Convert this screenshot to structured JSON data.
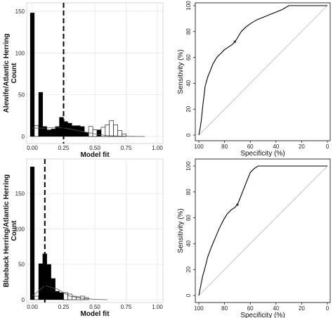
{
  "chart_data": [
    {
      "type": "bar",
      "panel": "top-left",
      "ylabel_lines": [
        "Alewife/Atlantic Herring",
        "Count"
      ],
      "xlabel": "Model fit",
      "xlim": [
        0,
        1
      ],
      "ylim": [
        0,
        155
      ],
      "x_ticks": [
        "0.00",
        "0.25",
        "0.50",
        "0.75",
        "1.00"
      ],
      "y_ticks": [
        "0",
        "50",
        "100",
        "150"
      ],
      "x_tick_values": [
        0,
        0.25,
        0.5,
        0.75,
        1
      ],
      "y_tick_values": [
        0,
        50,
        100,
        150
      ],
      "bin_width": 0.0333,
      "threshold": 0.25,
      "grid": true,
      "series": [
        {
          "color": "#000000",
          "values": [
            [
              0.0,
              148
            ],
            [
              0.067,
              53
            ],
            [
              0.1,
              12
            ],
            [
              0.133,
              8
            ],
            [
              0.167,
              9
            ],
            [
              0.2,
              12
            ],
            [
              0.233,
              23
            ],
            [
              0.267,
              18
            ],
            [
              0.3,
              16
            ],
            [
              0.333,
              13
            ],
            [
              0.367,
              13
            ],
            [
              0.4,
              12
            ],
            [
              0.433,
              5
            ],
            [
              0.467,
              5
            ],
            [
              0.5,
              3
            ],
            [
              0.533,
              8
            ],
            [
              0.567,
              8
            ],
            [
              0.6,
              3
            ],
            [
              0.633,
              1
            ]
          ]
        },
        {
          "color": "#ffffff",
          "values": [
            [
              0.033,
              13
            ],
            [
              0.467,
              12
            ],
            [
              0.5,
              8
            ],
            [
              0.567,
              11
            ],
            [
              0.6,
              14
            ],
            [
              0.633,
              19
            ],
            [
              0.667,
              14
            ],
            [
              0.7,
              7
            ],
            [
              0.733,
              3
            ]
          ]
        }
      ],
      "density_line": [
        [
          0.0,
          10
        ],
        [
          0.1,
          10
        ],
        [
          0.2,
          11
        ],
        [
          0.3,
          9
        ],
        [
          0.4,
          6
        ],
        [
          0.5,
          3
        ],
        [
          0.6,
          1
        ],
        [
          0.7,
          0.5
        ],
        [
          0.8,
          0.2
        ],
        [
          0.9,
          0
        ]
      ]
    },
    {
      "type": "line",
      "panel": "top-right",
      "xlabel": "Specificity (%)",
      "ylabel": "Sensitivity (%)",
      "x_reversed": true,
      "xlim": [
        100,
        0
      ],
      "ylim": [
        0,
        100
      ],
      "x_ticks": [
        "100",
        "80",
        "60",
        "40",
        "20",
        "0"
      ],
      "y_ticks": [
        "0",
        "20",
        "40",
        "60",
        "80",
        "100"
      ],
      "x_tick_values": [
        100,
        80,
        60,
        40,
        20,
        0
      ],
      "y_tick_values": [
        0,
        20,
        40,
        60,
        80,
        100
      ],
      "marker": {
        "symbol": "*",
        "x": 72,
        "y": 72
      },
      "series": [
        {
          "values": [
            [
              100,
              0
            ],
            [
              99,
              5
            ],
            [
              98,
              12
            ],
            [
              97,
              22
            ],
            [
              96,
              30
            ],
            [
              95,
              38
            ],
            [
              93,
              45
            ],
            [
              91,
              50
            ],
            [
              89,
              55
            ],
            [
              86,
              60
            ],
            [
              83,
              63
            ],
            [
              80,
              66
            ],
            [
              77,
              68
            ],
            [
              74,
              70
            ],
            [
              72,
              72
            ],
            [
              70,
              75
            ],
            [
              67,
              80
            ],
            [
              64,
              83
            ],
            [
              60,
              86
            ],
            [
              55,
              89
            ],
            [
              50,
              91
            ],
            [
              45,
              93
            ],
            [
              40,
              95
            ],
            [
              35,
              97
            ],
            [
              30,
              100
            ],
            [
              0,
              100
            ]
          ]
        }
      ]
    },
    {
      "type": "bar",
      "panel": "bottom-left",
      "ylabel_lines": [
        "Blueback Herring/Atlantic Herring",
        "Count"
      ],
      "xlabel": "Model fit",
      "xlim": [
        0,
        1
      ],
      "ylim": [
        0,
        195
      ],
      "x_ticks": [
        "0.00",
        "0.25",
        "0.50",
        "0.75",
        "1.00"
      ],
      "y_ticks": [
        "0",
        "50",
        "100",
        "150"
      ],
      "x_tick_values": [
        0,
        0.25,
        0.5,
        0.75,
        1
      ],
      "y_tick_values": [
        0,
        50,
        100,
        150
      ],
      "bin_width": 0.0333,
      "threshold": 0.1,
      "grid": true,
      "series": [
        {
          "color": "#000000",
          "values": [
            [
              0.0,
              188
            ],
            [
              0.067,
              51
            ],
            [
              0.1,
              65
            ],
            [
              0.133,
              50
            ],
            [
              0.167,
              30
            ],
            [
              0.2,
              12
            ],
            [
              0.233,
              10
            ],
            [
              0.267,
              5
            ],
            [
              0.3,
              3
            ],
            [
              0.333,
              2
            ],
            [
              0.4,
              3
            ]
          ]
        },
        {
          "color": "#ffffff",
          "values": [
            [
              0.033,
              5
            ],
            [
              0.267,
              10
            ],
            [
              0.3,
              8
            ],
            [
              0.333,
              5
            ],
            [
              0.367,
              4
            ],
            [
              0.4,
              5
            ],
            [
              0.433,
              3
            ]
          ]
        }
      ],
      "density_line": [
        [
          0.0,
          5
        ],
        [
          0.1,
          20
        ],
        [
          0.2,
          15
        ],
        [
          0.3,
          5
        ],
        [
          0.4,
          2
        ],
        [
          0.5,
          0.5
        ],
        [
          0.6,
          0
        ]
      ]
    },
    {
      "type": "line",
      "panel": "bottom-right",
      "xlabel": "Specificity (%)",
      "ylabel": "Sensitivity (%)",
      "x_reversed": true,
      "xlim": [
        100,
        0
      ],
      "ylim": [
        0,
        100
      ],
      "x_ticks": [
        "100",
        "80",
        "60",
        "40",
        "20",
        "0"
      ],
      "y_ticks": [
        "0",
        "20",
        "40",
        "60",
        "80",
        "100"
      ],
      "x_tick_values": [
        100,
        80,
        60,
        40,
        20,
        0
      ],
      "y_tick_values": [
        0,
        20,
        40,
        60,
        80,
        100
      ],
      "marker": {
        "symbol": "*",
        "x": 70,
        "y": 70
      },
      "series": [
        {
          "values": [
            [
              100,
              0
            ],
            [
              99,
              5
            ],
            [
              97,
              15
            ],
            [
              95,
              22
            ],
            [
              93,
              30
            ],
            [
              90,
              38
            ],
            [
              87,
              45
            ],
            [
              84,
              52
            ],
            [
              81,
              58
            ],
            [
              78,
              63
            ],
            [
              75,
              66
            ],
            [
              72,
              68
            ],
            [
              70,
              70
            ],
            [
              68,
              75
            ],
            [
              66,
              80
            ],
            [
              64,
              85
            ],
            [
              62,
              90
            ],
            [
              60,
              95
            ],
            [
              57,
              98
            ],
            [
              54,
              100
            ],
            [
              0,
              100
            ]
          ]
        }
      ]
    }
  ]
}
